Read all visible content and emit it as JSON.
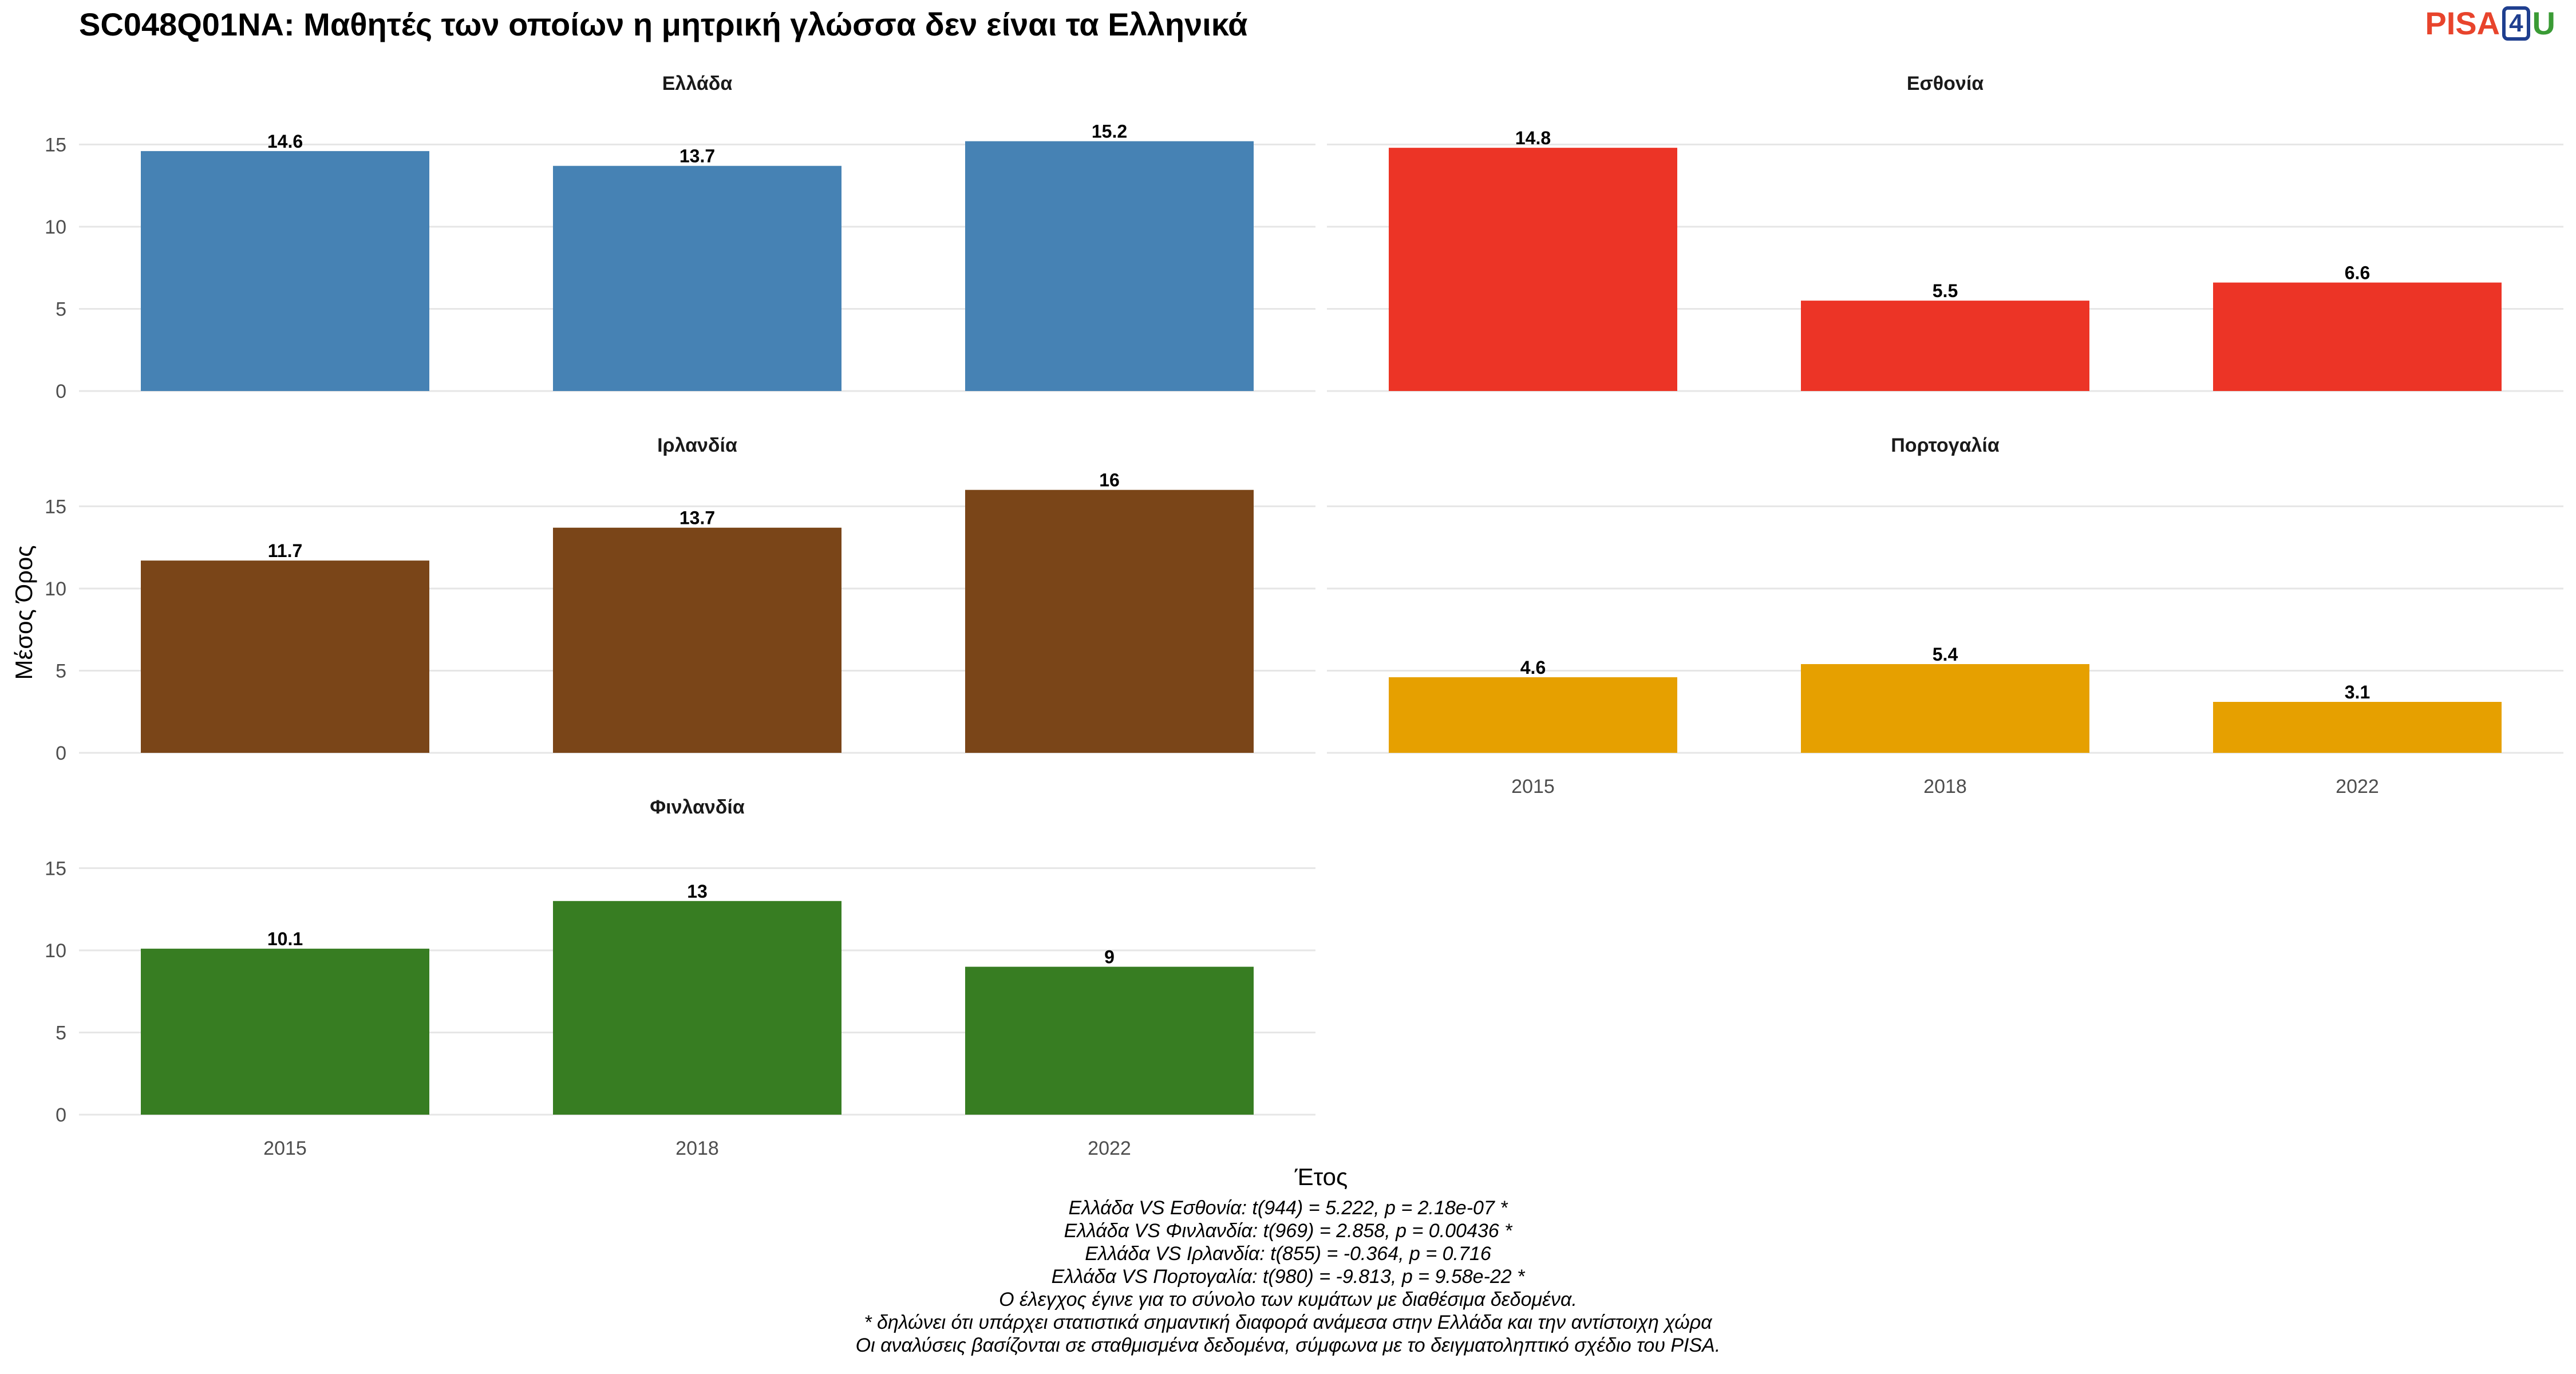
{
  "title": "SC048Q01NA: Μαθητές των οποίων η μητρική γλώσσα δεν είναι τα Ελληνικά",
  "logo": {
    "part1": "PISA",
    "part2": "4",
    "part3": "U"
  },
  "colors": {
    "greece": "#4682b4",
    "estonia": "#ec3426",
    "ireland": "#7a4518",
    "portugal": "#e6a000",
    "finland": "#377d22",
    "grid": "#e6e6e6",
    "axis_text": "#4d4d4d"
  },
  "chart_data": {
    "type": "bar",
    "xlabel": "Έτος",
    "ylabel": "Μέσος Όρος",
    "ylim": [
      0,
      17
    ],
    "yticks": [
      0,
      5,
      10,
      15
    ],
    "categories": [
      "2015",
      "2018",
      "2022"
    ],
    "grid": true,
    "facets": [
      {
        "name": "Ελλάδα",
        "color_key": "greece",
        "values": [
          14.6,
          13.7,
          15.2
        ],
        "labels": [
          "14.6",
          "13.7",
          "15.2"
        ]
      },
      {
        "name": "Εσθονία",
        "color_key": "estonia",
        "values": [
          14.8,
          5.5,
          6.6
        ],
        "labels": [
          "14.8",
          "5.5",
          "6.6"
        ]
      },
      {
        "name": "Ιρλανδία",
        "color_key": "ireland",
        "values": [
          11.7,
          13.7,
          16.0
        ],
        "labels": [
          "11.7",
          "13.7",
          "16"
        ]
      },
      {
        "name": "Πορτογαλία",
        "color_key": "portugal",
        "values": [
          4.6,
          5.4,
          3.1
        ],
        "labels": [
          "4.6",
          "5.4",
          "3.1"
        ]
      },
      {
        "name": "Φινλανδία",
        "color_key": "finland",
        "values": [
          10.1,
          13.0,
          9.0
        ],
        "labels": [
          "10.1",
          "13",
          "9"
        ]
      }
    ]
  },
  "footnotes": [
    "Ελλάδα VS Εσθονία: t(944) = 5.222, p = 2.18e-07 *",
    "Ελλάδα VS Φινλανδία: t(969) = 2.858, p = 0.00436 *",
    "Ελλάδα VS Ιρλανδία: t(855) = -0.364, p = 0.716",
    "Ελλάδα VS Πορτογαλία: t(980) = -9.813, p = 9.58e-22 *",
    "Ο έλεγχος έγινε για το σύνολο των κυμάτων με διαθέσιμα δεδομένα.",
    "* δηλώνει ότι υπάρχει στατιστικά σημαντική διαφορά ανάμεσα στην Ελλάδα και την αντίστοιχη χώρα",
    "Οι αναλύσεις βασίζονται σε σταθμισμένα δεδομένα, σύμφωνα με το δειγματοληπτικό σχέδιο του PISA."
  ]
}
